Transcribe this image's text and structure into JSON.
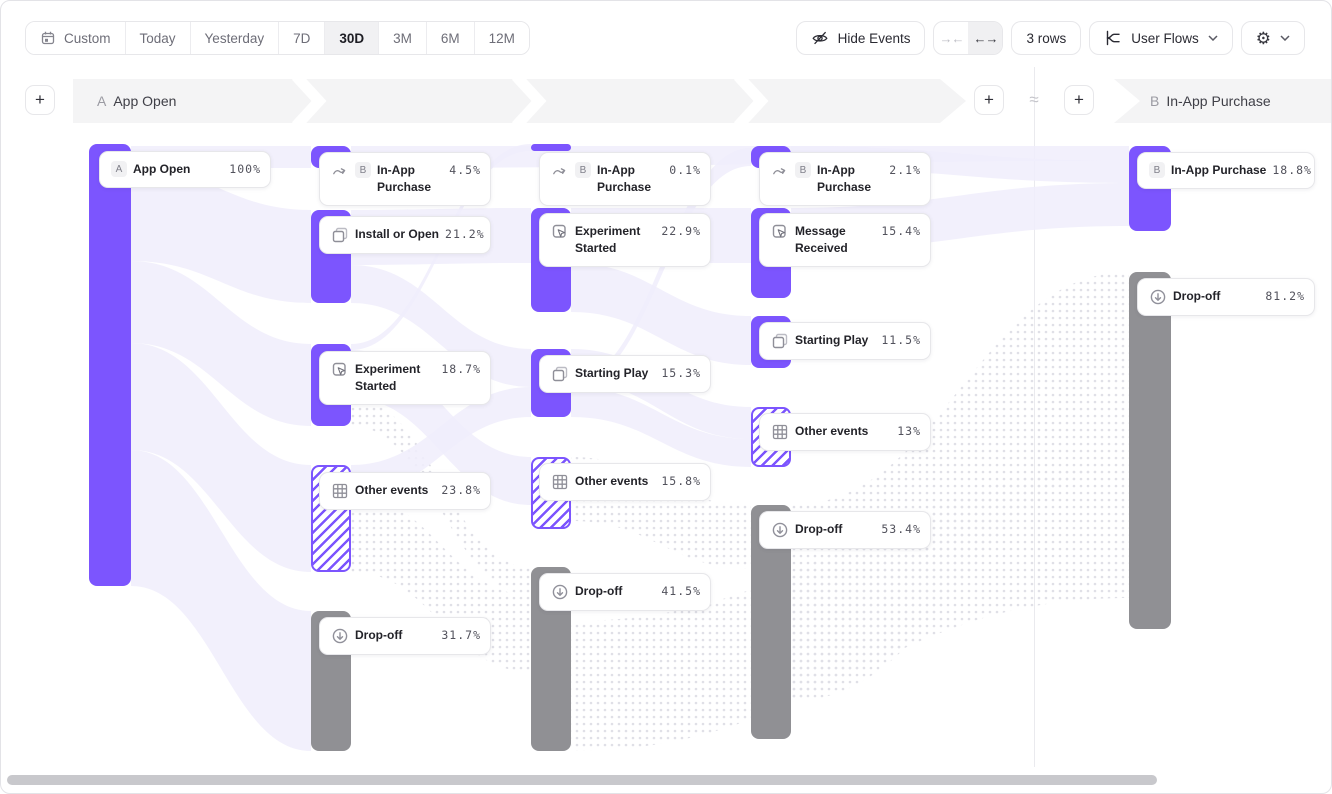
{
  "toolbar": {
    "date_picker": {
      "items": [
        {
          "label": "Custom",
          "icon": "calendar",
          "selected": false
        },
        {
          "label": "Today",
          "selected": false
        },
        {
          "label": "Yesterday",
          "selected": false
        },
        {
          "label": "7D",
          "selected": false
        },
        {
          "label": "30D",
          "selected": true
        },
        {
          "label": "3M",
          "selected": false
        },
        {
          "label": "6M",
          "selected": false
        },
        {
          "label": "12M",
          "selected": false
        }
      ]
    },
    "hide_events_label": "Hide Events",
    "collapse_glyph": "→←",
    "expand_glyph": "←→",
    "rows_label": "3 rows",
    "view_label": "User Flows",
    "icons": [
      "calendar",
      "eye-off",
      "arrows-inward",
      "arrows-outward",
      "flow-chart",
      "chevron-down",
      "gear"
    ]
  },
  "flow_header": {
    "start_badge": "A",
    "start_label": "App Open",
    "end_badge": "B",
    "end_label": "In-App Purchase",
    "approx_glyph": "≈",
    "add_step_glyph": "+"
  },
  "colors": {
    "accent_purple": "#7C55FE",
    "dropoff_gray": "#909094",
    "ribbon": "#F0EDFB",
    "ribbon_dots": "#E0E0E7",
    "band_gray": "#F4F4F5"
  },
  "chart_data": {
    "type": "sankey",
    "title": "User Flows: A App Open → B In-App Purchase (30D)",
    "legend_position": "none",
    "columns": [
      {
        "step": 1,
        "nodes": [
          {
            "label": "App Open",
            "pct": "100%",
            "badge": "A",
            "icon": null,
            "kind": "purple",
            "nowrap": true,
            "layout": {
              "bar": [
                88,
                143,
                42,
                442
              ],
              "card": [
                98,
                150,
                172
              ]
            }
          }
        ]
      },
      {
        "step": 2,
        "nodes": [
          {
            "label": "In-App Purchase",
            "pct": "4.5%",
            "badge": "B",
            "icon": "squiggle-arrow",
            "kind": "purple",
            "layout": {
              "bar": [
                310,
                145,
                40,
                22
              ],
              "card": [
                318,
                151,
                172
              ]
            }
          },
          {
            "label": "Install or Open",
            "pct": "21.2%",
            "icon": "overlapping-squares",
            "kind": "purple",
            "nowrap": true,
            "layout": {
              "bar": [
                310,
                209,
                40,
                93
              ],
              "card": [
                318,
                215,
                172
              ]
            }
          },
          {
            "label": "Experiment Started",
            "pct": "18.7%",
            "icon": "cursor-square",
            "kind": "purple",
            "layout": {
              "bar": [
                310,
                343,
                40,
                82
              ],
              "card": [
                318,
                350,
                172
              ]
            }
          },
          {
            "label": "Other events",
            "pct": "23.8%",
            "icon": "grid",
            "kind": "hatched",
            "nowrap": true,
            "layout": {
              "bar": [
                310,
                464,
                40,
                107
              ],
              "card": [
                318,
                471,
                172
              ]
            }
          },
          {
            "label": "Drop-off",
            "pct": "31.7%",
            "icon": "arrow-down-circle",
            "kind": "dropoff",
            "nowrap": true,
            "layout": {
              "bar": [
                310,
                610,
                40,
                140
              ],
              "card": [
                318,
                616,
                172
              ]
            }
          }
        ]
      },
      {
        "step": 3,
        "nodes": [
          {
            "label": "In-App Purchase",
            "pct": "0.1%",
            "badge": "B",
            "icon": "squiggle-arrow",
            "kind": "purple",
            "layout": {
              "bar": [
                530,
                143,
                40,
                7
              ],
              "card": [
                538,
                151,
                172
              ]
            }
          },
          {
            "label": "Experiment Started",
            "pct": "22.9%",
            "icon": "cursor-square",
            "kind": "purple",
            "layout": {
              "bar": [
                530,
                207,
                40,
                104
              ],
              "card": [
                538,
                212,
                172
              ]
            }
          },
          {
            "label": "Starting Play",
            "pct": "15.3%",
            "icon": "overlapping-squares",
            "kind": "purple",
            "nowrap": true,
            "layout": {
              "bar": [
                530,
                348,
                40,
                68
              ],
              "card": [
                538,
                354,
                172
              ]
            }
          },
          {
            "label": "Other events",
            "pct": "15.8%",
            "icon": "grid",
            "kind": "hatched",
            "nowrap": true,
            "layout": {
              "bar": [
                530,
                456,
                40,
                72
              ],
              "card": [
                538,
                462,
                172
              ]
            }
          },
          {
            "label": "Drop-off",
            "pct": "41.5%",
            "icon": "arrow-down-circle",
            "kind": "dropoff",
            "nowrap": true,
            "layout": {
              "bar": [
                530,
                566,
                40,
                184
              ],
              "card": [
                538,
                572,
                172
              ]
            }
          }
        ]
      },
      {
        "step": 4,
        "nodes": [
          {
            "label": "In-App Purchase",
            "pct": "2.1%",
            "badge": "B",
            "icon": "squiggle-arrow",
            "kind": "purple",
            "layout": {
              "bar": [
                750,
                145,
                40,
                22
              ],
              "card": [
                758,
                151,
                172
              ]
            }
          },
          {
            "label": "Message Received",
            "pct": "15.4%",
            "icon": "cursor-square",
            "kind": "purple",
            "layout": {
              "bar": [
                750,
                207,
                40,
                90
              ],
              "card": [
                758,
                212,
                172
              ]
            }
          },
          {
            "label": "Starting Play",
            "pct": "11.5%",
            "icon": "overlapping-squares",
            "kind": "purple",
            "nowrap": true,
            "layout": {
              "bar": [
                750,
                315,
                40,
                52
              ],
              "card": [
                758,
                321,
                172
              ]
            }
          },
          {
            "label": "Other events",
            "pct": "13%",
            "icon": "grid",
            "kind": "hatched",
            "nowrap": true,
            "layout": {
              "bar": [
                750,
                406,
                40,
                60
              ],
              "card": [
                758,
                412,
                172
              ]
            }
          },
          {
            "label": "Drop-off",
            "pct": "53.4%",
            "icon": "arrow-down-circle",
            "kind": "dropoff",
            "nowrap": true,
            "layout": {
              "bar": [
                750,
                504,
                40,
                234
              ],
              "card": [
                758,
                510,
                172
              ]
            }
          }
        ]
      },
      {
        "step": 5,
        "nodes": [
          {
            "label": "In-App Purchase",
            "pct": "18.8%",
            "badge": "B",
            "icon": null,
            "kind": "purple",
            "nowrap": true,
            "layout": {
              "bar": [
                1128,
                145,
                42,
                85
              ],
              "card": [
                1136,
                151,
                178
              ]
            }
          },
          {
            "label": "Drop-off",
            "pct": "81.2%",
            "icon": "arrow-down-circle",
            "kind": "dropoff",
            "nowrap": true,
            "layout": {
              "bar": [
                1128,
                271,
                42,
                357
              ],
              "card": [
                1136,
                277,
                178
              ]
            }
          }
        ]
      }
    ],
    "flows": [
      {
        "from": [
          130,
          145,
          167
        ],
        "to": [
          310,
          145,
          167
        ],
        "style": "purple"
      },
      {
        "from": [
          130,
          167,
          260
        ],
        "to": [
          310,
          209,
          302
        ],
        "style": "purple"
      },
      {
        "from": [
          130,
          260,
          342
        ],
        "to": [
          310,
          343,
          425
        ],
        "style": "purple"
      },
      {
        "from": [
          130,
          342,
          449
        ],
        "to": [
          310,
          464,
          571
        ],
        "style": "purple"
      },
      {
        "from": [
          130,
          449,
          585
        ],
        "to": [
          310,
          610,
          750
        ],
        "style": "purple"
      },
      {
        "from": [
          350,
          209,
          264
        ],
        "to": [
          530,
          207,
          262
        ],
        "style": "purple"
      },
      {
        "from": [
          350,
          264,
          302
        ],
        "to": [
          530,
          348,
          386
        ],
        "style": "purple"
      },
      {
        "from": [
          350,
          343,
          349
        ],
        "to": [
          530,
          143,
          150
        ],
        "style": "purple"
      },
      {
        "from": [
          350,
          349,
          397
        ],
        "to": [
          530,
          456,
          504
        ],
        "style": "purple"
      },
      {
        "from": [
          350,
          397,
          425
        ],
        "to": [
          530,
          566,
          594
        ],
        "style": "dots"
      },
      {
        "from": [
          350,
          464,
          494
        ],
        "to": [
          530,
          386,
          416
        ],
        "style": "purple"
      },
      {
        "from": [
          350,
          494,
          571
        ],
        "to": [
          530,
          594,
          671
        ],
        "style": "dots"
      },
      {
        "from": [
          350,
          145,
          167
        ],
        "to": [
          1128,
          145,
          160
        ],
        "style": "purple"
      },
      {
        "from": [
          570,
          207,
          262
        ],
        "to": [
          750,
          207,
          262
        ],
        "style": "purple"
      },
      {
        "from": [
          570,
          262,
          311
        ],
        "to": [
          750,
          315,
          364
        ],
        "style": "purple"
      },
      {
        "from": [
          570,
          348,
          380
        ],
        "to": [
          750,
          406,
          438
        ],
        "style": "purple"
      },
      {
        "from": [
          570,
          380,
          386
        ],
        "to": [
          750,
          147,
          165
        ],
        "style": "purple"
      },
      {
        "from": [
          570,
          386,
          416
        ],
        "to": [
          750,
          438,
          466
        ],
        "style": "purple"
      },
      {
        "from": [
          570,
          456,
          520
        ],
        "to": [
          750,
          504,
          568
        ],
        "style": "dots"
      },
      {
        "from": [
          790,
          145,
          167
        ],
        "to": [
          1128,
          160,
          182
        ],
        "style": "purple"
      },
      {
        "from": [
          790,
          207,
          250
        ],
        "to": [
          1128,
          182,
          225
        ],
        "style": "purple"
      },
      {
        "from": [
          790,
          504,
          700
        ],
        "to": [
          1128,
          271,
          467
        ],
        "style": "dots"
      },
      {
        "from": [
          570,
          620,
          750
        ],
        "to": [
          1128,
          467,
          597
        ],
        "style": "dots"
      }
    ]
  }
}
